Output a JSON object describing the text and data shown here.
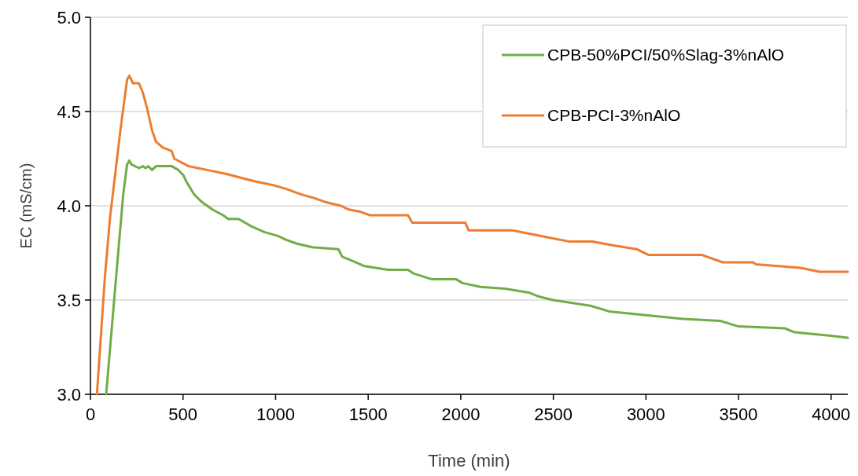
{
  "chart_data": {
    "type": "line",
    "xlabel": "Time (min)",
    "ylabel": "EC (mS/cm)",
    "xlim": [
      0,
      4090
    ],
    "ylim": [
      3.0,
      5.0
    ],
    "xticks": [
      0,
      500,
      1000,
      1500,
      2000,
      2500,
      3000,
      3500,
      4000
    ],
    "yticks": [
      {
        "value": 3.0,
        "label": "3.0"
      },
      {
        "value": 3.5,
        "label": "3.5"
      },
      {
        "value": 4.0,
        "label": "4.0"
      },
      {
        "value": 4.5,
        "label": "4.5"
      },
      {
        "value": 5.0,
        "label": "5.0"
      }
    ],
    "grid": "y",
    "legend": "top right",
    "marker": "none",
    "line_style": "solid",
    "series": [
      {
        "name": "CPB-50%PCI/50%Slag-3%nAlO",
        "color": "#70ad47",
        "x": [
          85,
          135,
          177,
          198,
          210,
          220,
          262,
          283,
          298,
          312,
          333,
          354,
          439,
          475,
          503,
          517,
          560,
          602,
          659,
          716,
          744,
          800,
          871,
          942,
          1013,
          1055,
          1112,
          1197,
          1339,
          1360,
          1410,
          1480,
          1608,
          1715,
          1747,
          1845,
          1976,
          2009,
          2107,
          2238,
          2367,
          2417,
          2499,
          2700,
          2800,
          3000,
          3200,
          3400,
          3500,
          3750,
          3800,
          4000,
          4090
        ],
        "values": [
          3.0,
          3.58,
          4.06,
          4.22,
          4.24,
          4.22,
          4.2,
          4.21,
          4.2,
          4.21,
          4.19,
          4.21,
          4.21,
          4.19,
          4.16,
          4.13,
          4.06,
          4.02,
          3.98,
          3.95,
          3.93,
          3.93,
          3.89,
          3.86,
          3.84,
          3.82,
          3.8,
          3.78,
          3.77,
          3.73,
          3.71,
          3.68,
          3.66,
          3.66,
          3.64,
          3.61,
          3.61,
          3.59,
          3.57,
          3.56,
          3.54,
          3.52,
          3.5,
          3.47,
          3.44,
          3.42,
          3.4,
          3.39,
          3.36,
          3.35,
          3.33,
          3.31,
          3.3
        ]
      },
      {
        "name": "CPB-PCI-3%nAlO",
        "color": "#ed7d31",
        "x": [
          35,
          78,
          106,
          128,
          163,
          198,
          210,
          230,
          262,
          283,
          305,
          333,
          354,
          390,
          439,
          453,
          531,
          630,
          730,
          885,
          985,
          1055,
          1140,
          1211,
          1268,
          1353,
          1395,
          1452,
          1509,
          1715,
          1738,
          2025,
          2042,
          2278,
          2482,
          2588,
          2712,
          2826,
          2949,
          3013,
          3300,
          3415,
          3578,
          3594,
          3840,
          3938,
          4090
        ],
        "values": [
          3.0,
          3.62,
          3.94,
          4.12,
          4.41,
          4.67,
          4.69,
          4.65,
          4.65,
          4.6,
          4.52,
          4.4,
          4.34,
          4.31,
          4.29,
          4.25,
          4.21,
          4.19,
          4.17,
          4.13,
          4.11,
          4.09,
          4.06,
          4.04,
          4.02,
          4.0,
          3.98,
          3.97,
          3.95,
          3.95,
          3.91,
          3.91,
          3.87,
          3.87,
          3.83,
          3.81,
          3.81,
          3.79,
          3.77,
          3.74,
          3.74,
          3.7,
          3.7,
          3.69,
          3.67,
          3.65,
          3.65
        ]
      }
    ]
  }
}
